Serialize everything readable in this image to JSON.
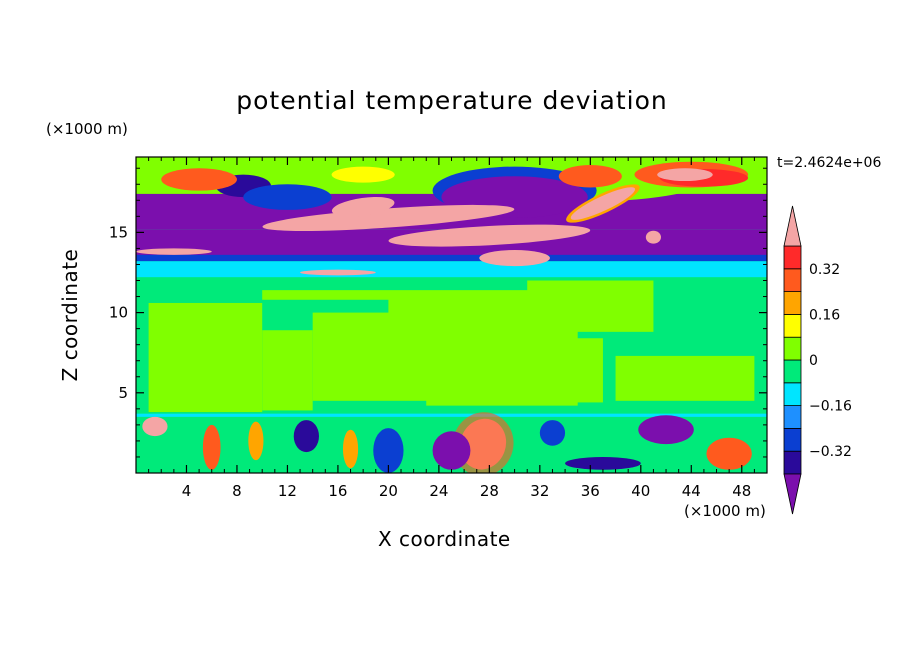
{
  "chart_data": {
    "type": "heatmap",
    "title": "potential temperature deviation",
    "xlabel": "X coordinate",
    "ylabel": "Z coordinate",
    "x_unit_label": "(×1000 m)",
    "y_unit_label": "(×1000 m)",
    "time_label": "t=2.4624e+06",
    "xlim": [
      0,
      50
    ],
    "ylim": [
      0,
      19.7
    ],
    "xticks": [
      4,
      8,
      12,
      16,
      20,
      24,
      28,
      32,
      36,
      40,
      44,
      48
    ],
    "xtick_labels": [
      "4",
      "8",
      "12",
      "16",
      "20",
      "24",
      "28",
      "32",
      "36",
      "40",
      "44",
      "48"
    ],
    "yticks": [
      5,
      10,
      15
    ],
    "ytick_labels": [
      "5",
      "10",
      "15"
    ],
    "colorbar": {
      "levels": [
        -0.4,
        -0.32,
        -0.24,
        -0.16,
        -0.08,
        0,
        0.08,
        0.16,
        0.24,
        0.32,
        0.4
      ],
      "tick_values": [
        -0.32,
        -0.16,
        0,
        0.16,
        0.32
      ],
      "tick_labels": [
        "−0.32",
        "−0.16",
        "0",
        "0.16",
        "0.32"
      ],
      "under_color": "#7b0fad",
      "over_color": "#f4a5a5",
      "colors": [
        "#2a0a9a",
        "#0b3fd1",
        "#1e90ff",
        "#00e5ff",
        "#00ea7a",
        "#80ff00",
        "#ffff00",
        "#ffa500",
        "#ff5a1e",
        "#ff2a2a"
      ]
    },
    "layers": [
      {
        "z": [
          0,
          3.6
        ],
        "description_value": "mixed",
        "mean": 0
      },
      {
        "z": [
          3.6,
          11.5
        ],
        "mean": 0.02
      },
      {
        "z": [
          11.5,
          13.5
        ],
        "mean": -0.1
      },
      {
        "z": [
          13.5,
          17.5
        ],
        "mean": -0.4
      },
      {
        "z": [
          17.5,
          19.7
        ],
        "mean": 0.05
      }
    ]
  }
}
